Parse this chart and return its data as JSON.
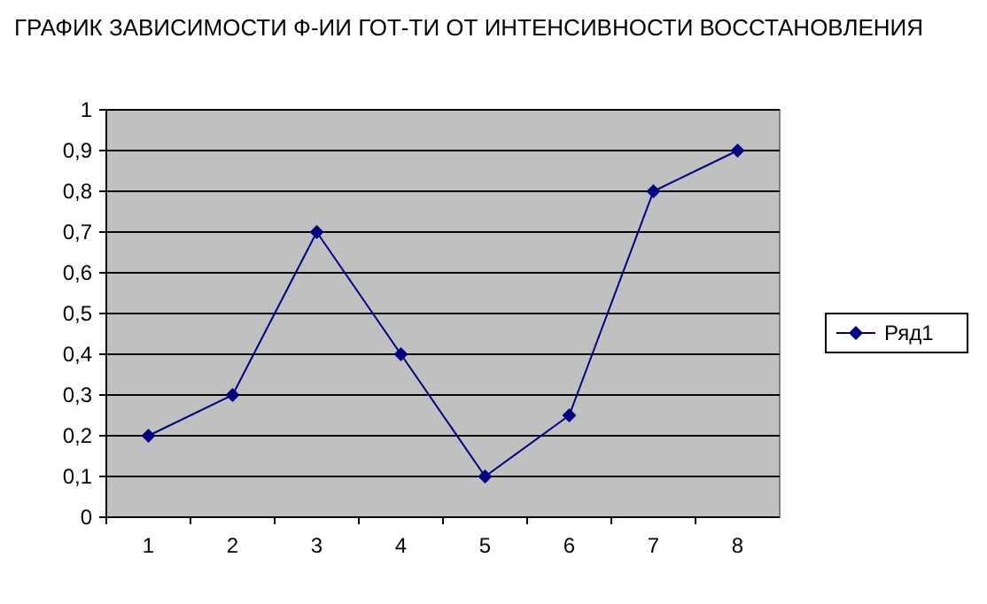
{
  "chart_data": {
    "type": "line",
    "title": "ГРАФИК ЗАВИСИМОСТИ Ф-ИИ ГОТ-ТИ ОТ ИНТЕНСИВНОСТИ ВОССТАНОВЛЕНИЯ",
    "categories": [
      "1",
      "2",
      "3",
      "4",
      "5",
      "6",
      "7",
      "8"
    ],
    "series": [
      {
        "name": "Ряд1",
        "color": "#000080",
        "values": [
          0.2,
          0.3,
          0.7,
          0.4,
          0.1,
          0.25,
          0.8,
          0.9
        ]
      }
    ],
    "ylim": [
      0,
      1
    ],
    "yticks": [
      0,
      {
        "value": 0.1,
        "label": "0,1"
      },
      {
        "value": 0.2,
        "label": "0,2"
      },
      {
        "value": 0.3,
        "label": "0,3"
      },
      {
        "value": 0.4,
        "label": "0,4"
      },
      {
        "value": 0.5,
        "label": "0,5"
      },
      {
        "value": 0.6,
        "label": "0,6"
      },
      {
        "value": 0.7,
        "label": "0,7"
      },
      {
        "value": 0.8,
        "label": "0,8"
      },
      {
        "value": 0.9,
        "label": "0,9"
      },
      1
    ],
    "grid": "y",
    "legend": "right",
    "marker": "diamond",
    "line_style": "solid"
  }
}
